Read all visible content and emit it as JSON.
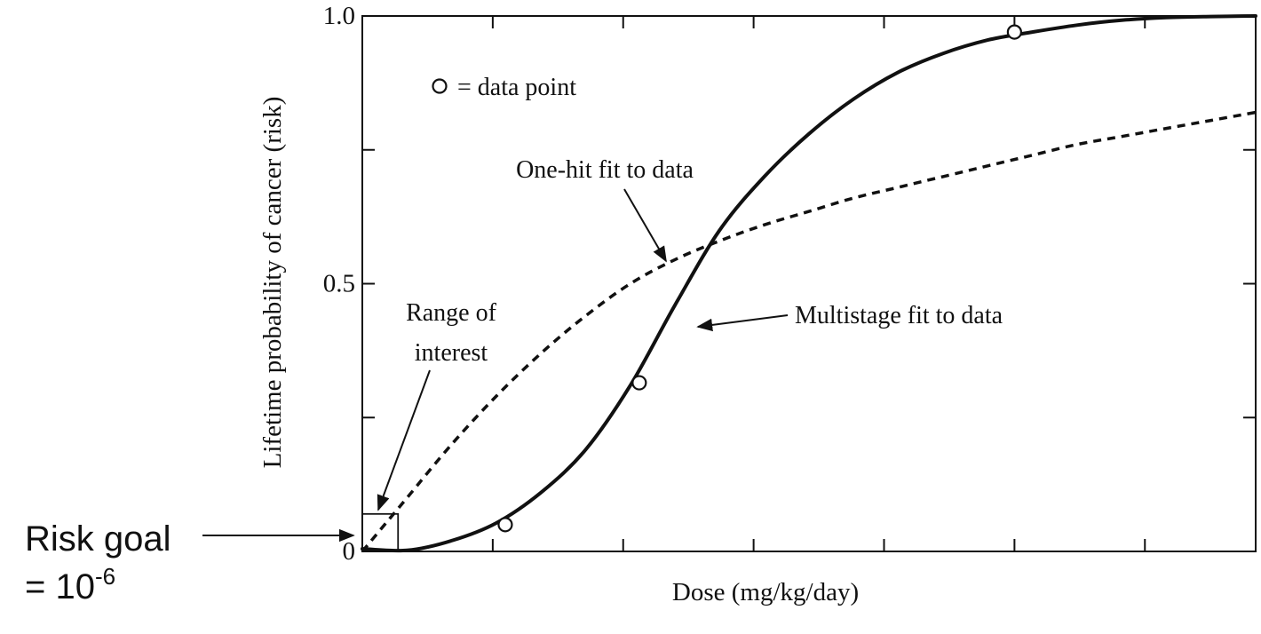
{
  "chart_data": {
    "type": "line",
    "title": "",
    "xlabel": "Dose (mg/kg/day)",
    "ylabel": "Lifetime probability of cancer (risk)",
    "xlim": [
      0,
      10
    ],
    "ylim": [
      0,
      1.0
    ],
    "y_tick_labels": [
      {
        "value": 0,
        "label": "0"
      },
      {
        "value": 0.5,
        "label": "0.5"
      },
      {
        "value": 1.0,
        "label": "1.0"
      }
    ],
    "minor_y_ticks": [
      0.25,
      0.75
    ],
    "x_ticks": [
      0,
      1.46,
      2.92,
      4.38,
      5.84,
      7.3,
      8.76,
      10
    ],
    "series": [
      {
        "name": "Multistage fit to data",
        "style": "solid",
        "x": [
          0,
          0.5,
          1.0,
          1.5,
          2.0,
          2.5,
          3.0,
          3.5,
          4.0,
          4.5,
          5.0,
          5.5,
          6.0,
          6.5,
          7.0,
          7.5,
          8.0,
          8.5,
          9.0,
          9.5,
          10.0
        ],
        "y": [
          0.005,
          0.002,
          0.02,
          0.053,
          0.11,
          0.19,
          0.31,
          0.46,
          0.6,
          0.7,
          0.78,
          0.845,
          0.895,
          0.93,
          0.955,
          0.97,
          0.983,
          0.992,
          0.997,
          0.999,
          1.0
        ]
      },
      {
        "name": "One-hit fit to data",
        "style": "dashed",
        "x": [
          0,
          0.2,
          0.5,
          1.0,
          1.5,
          2.0,
          2.5,
          3.0,
          3.5,
          4.0,
          4.5,
          5.0,
          5.5,
          6.0,
          6.5,
          7.0,
          7.5,
          8.0,
          8.5,
          9.0,
          9.5,
          10.0
        ],
        "y": [
          0.0,
          0.04,
          0.1,
          0.2,
          0.29,
          0.37,
          0.44,
          0.5,
          0.545,
          0.58,
          0.61,
          0.635,
          0.66,
          0.68,
          0.7,
          0.72,
          0.74,
          0.76,
          0.775,
          0.79,
          0.805,
          0.82
        ]
      },
      {
        "name": "data point",
        "style": "markers",
        "x": [
          1.6,
          3.1,
          7.3
        ],
        "y": [
          0.05,
          0.315,
          0.97
        ]
      }
    ],
    "legend": {
      "marker": "○",
      "label": "= data point",
      "position": "top-left"
    },
    "annotations": {
      "one_hit": "One-hit fit to data",
      "multistage": "Multistage fit to data",
      "range_line1": "Range of",
      "range_line2": "interest",
      "risk_goal_line1": "Risk goal",
      "risk_goal_line2_prefix": "= 10",
      "risk_goal_exponent": "-6"
    },
    "range_of_interest": {
      "x": [
        0,
        0.4
      ],
      "y": [
        0,
        0.07
      ]
    }
  }
}
